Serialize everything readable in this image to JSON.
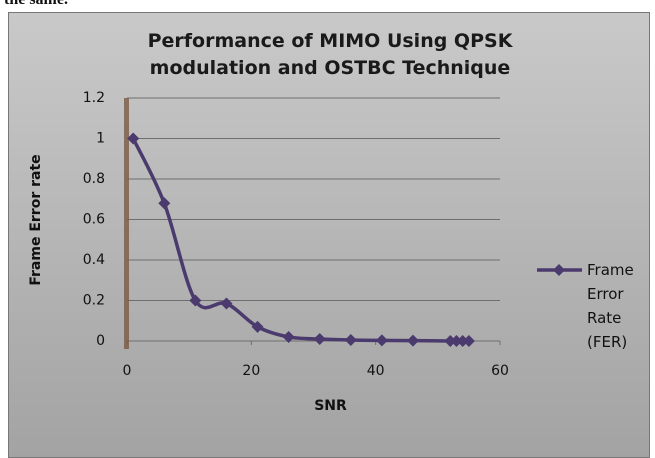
{
  "top_text": "the same.",
  "chart_data": {
    "type": "line",
    "title": [
      "Performance of MIMO Using QPSK",
      "modulation and OSTBC Technique"
    ],
    "xlabel": "SNR",
    "ylabel": "Frame Error rate",
    "x": [
      1,
      6,
      11,
      16,
      21,
      26,
      31,
      36,
      41,
      46,
      52,
      53,
      54,
      55
    ],
    "series": [
      {
        "name": "Frame Error Rate (FER)",
        "color": "#4b3a6e",
        "values": [
          1,
          0.68,
          0.2,
          0.185,
          0.07,
          0.02,
          0.01,
          0.005,
          0.003,
          0.002,
          0,
          0,
          0,
          0
        ]
      }
    ],
    "xlim": [
      0,
      60
    ],
    "xticks": [
      0,
      20,
      40,
      60
    ],
    "ylim": [
      0,
      1.2
    ],
    "yticks": [
      0,
      0.2,
      0.4,
      0.6,
      0.8,
      1,
      1.2
    ],
    "grid": true,
    "legend": "right"
  }
}
